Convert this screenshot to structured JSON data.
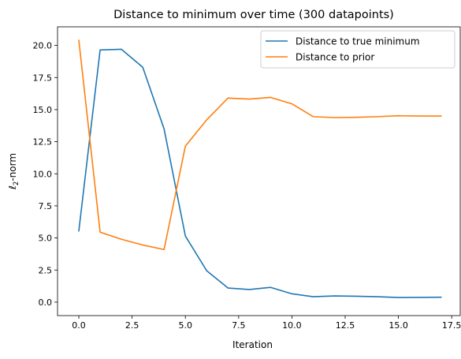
{
  "chart_data": {
    "type": "line",
    "title": "Distance to minimum over time (300 datapoints)",
    "xlabel": "Iteration",
    "ylabel_prefix": "ℓ",
    "ylabel_subscript": "2",
    "ylabel_suffix": "-norm",
    "xlim": [
      -1,
      17.9
    ],
    "ylim": [
      -1.05,
      21.45
    ],
    "xticks": [
      0.0,
      2.5,
      5.0,
      7.5,
      10.0,
      12.5,
      15.0,
      17.5
    ],
    "xtick_labels": [
      "0.0",
      "2.5",
      "5.0",
      "7.5",
      "10.0",
      "12.5",
      "15.0",
      "17.5"
    ],
    "yticks": [
      0.0,
      2.5,
      5.0,
      7.5,
      10.0,
      12.5,
      15.0,
      17.5,
      20.0
    ],
    "ytick_labels": [
      "0.0",
      "2.5",
      "5.0",
      "7.5",
      "10.0",
      "12.5",
      "15.0",
      "17.5",
      "20.0"
    ],
    "grid": false,
    "legend_position": "top-right",
    "x": [
      0,
      1,
      2,
      3,
      4,
      5,
      6,
      7,
      8,
      9,
      10,
      11,
      12,
      13,
      14,
      15,
      16,
      17
    ],
    "series": [
      {
        "name": "Distance to true minimum",
        "color": "#1f77b4",
        "values": [
          5.55,
          19.65,
          19.7,
          18.3,
          13.5,
          5.15,
          2.45,
          1.1,
          0.98,
          1.15,
          0.65,
          0.42,
          0.48,
          0.46,
          0.42,
          0.36,
          0.37,
          0.38
        ]
      },
      {
        "name": "Distance to prior",
        "color": "#ff7f0e",
        "values": [
          20.4,
          5.45,
          4.9,
          4.45,
          4.1,
          12.15,
          14.2,
          15.9,
          15.82,
          15.95,
          15.45,
          14.45,
          14.38,
          14.4,
          14.45,
          14.52,
          14.5,
          14.5
        ]
      }
    ]
  }
}
